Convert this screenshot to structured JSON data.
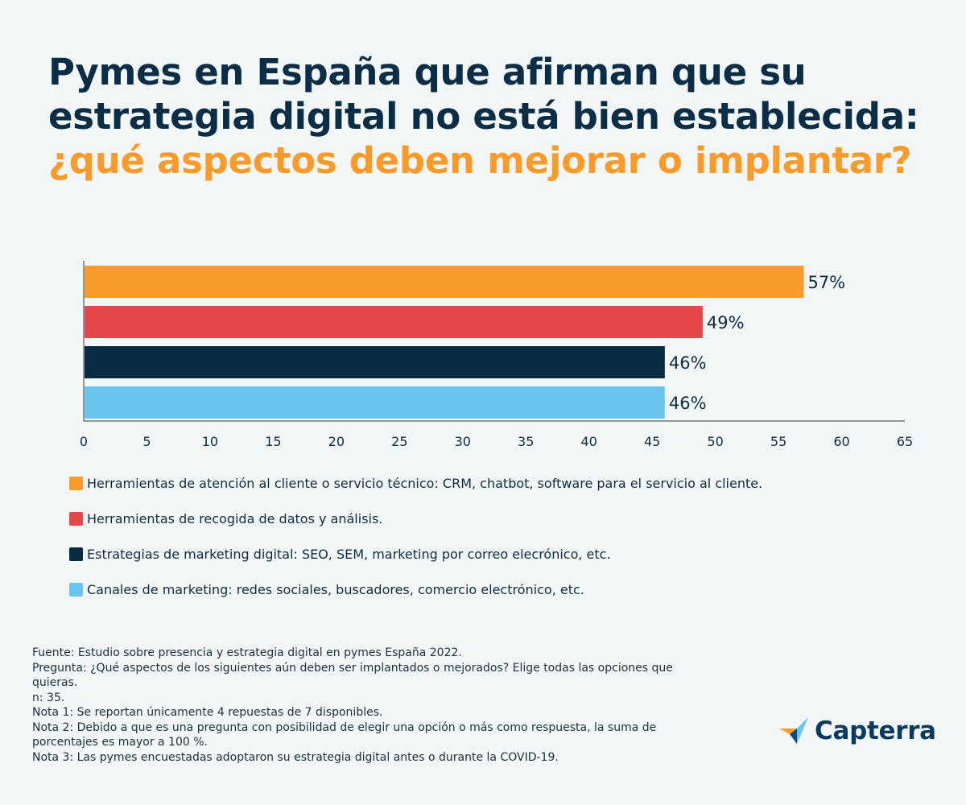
{
  "title": {
    "line1": "Pymes en España que afirman que su",
    "line2": "estrategia digital no está bien establecida:",
    "line3": "¿qué aspectos deben mejorar o implantar?",
    "color_main": "#0b2d45",
    "color_accent": "#f99b2a"
  },
  "chart_data": {
    "type": "bar",
    "orientation": "horizontal",
    "categories": [
      "Herramientas de atención al cliente o servicio técnico: CRM, chatbot, software para el servicio al cliente.",
      "Herramientas de recogida de datos y análisis.",
      "Estrategias de marketing digital: SEO, SEM, marketing por correo elecrónico, etc.",
      "Canales de marketing: redes sociales, buscadores, comercio electrónico, etc."
    ],
    "values": [
      57,
      49,
      46,
      46
    ],
    "value_labels": [
      "57%",
      "49%",
      "46%",
      "46%"
    ],
    "colors": [
      "#f99b2a",
      "#e5484a",
      "#0a2b44",
      "#6bc4ee"
    ],
    "xlim": [
      0,
      65
    ],
    "xticks": [
      0,
      5,
      10,
      15,
      20,
      25,
      30,
      35,
      40,
      45,
      50,
      55,
      60,
      65
    ],
    "grid": false,
    "legend_position": "bottom"
  },
  "legend": [
    {
      "label": "Herramientas de atención al cliente o servicio técnico: CRM, chatbot, software para el servicio al cliente.",
      "color": "#f99b2a"
    },
    {
      "label": "Herramientas de recogida de datos y análisis.",
      "color": "#e5484a"
    },
    {
      "label": "Estrategias de marketing digital: SEO, SEM, marketing por correo elecrónico, etc.",
      "color": "#0a2b44"
    },
    {
      "label": "Canales de marketing: redes sociales, buscadores, comercio electrónico, etc.",
      "color": "#6bc4ee"
    }
  ],
  "footnotes": {
    "source": "Fuente: Estudio sobre presencia y estrategia digital en pymes España 2022.",
    "question": "Pregunta: ¿Qué aspectos de los siguientes aún deben ser implantados o mejorados? Elige todas las opciones que quieras.",
    "n": "n: 35.",
    "note1": "Nota 1: Se reportan únicamente 4 repuestas de 7 disponibles.",
    "note2": "Nota 2: Debido a que es una pregunta con posibilidad de elegir una opción o más como respuesta, la suma de porcentajes es mayor a 100 %.",
    "note3": "Nota 3: Las pymes encuestadas adoptaron su estrategia digital antes o durante la COVID-19."
  },
  "logo": {
    "text": "Capterra",
    "icon": "capterra-logo-icon"
  }
}
